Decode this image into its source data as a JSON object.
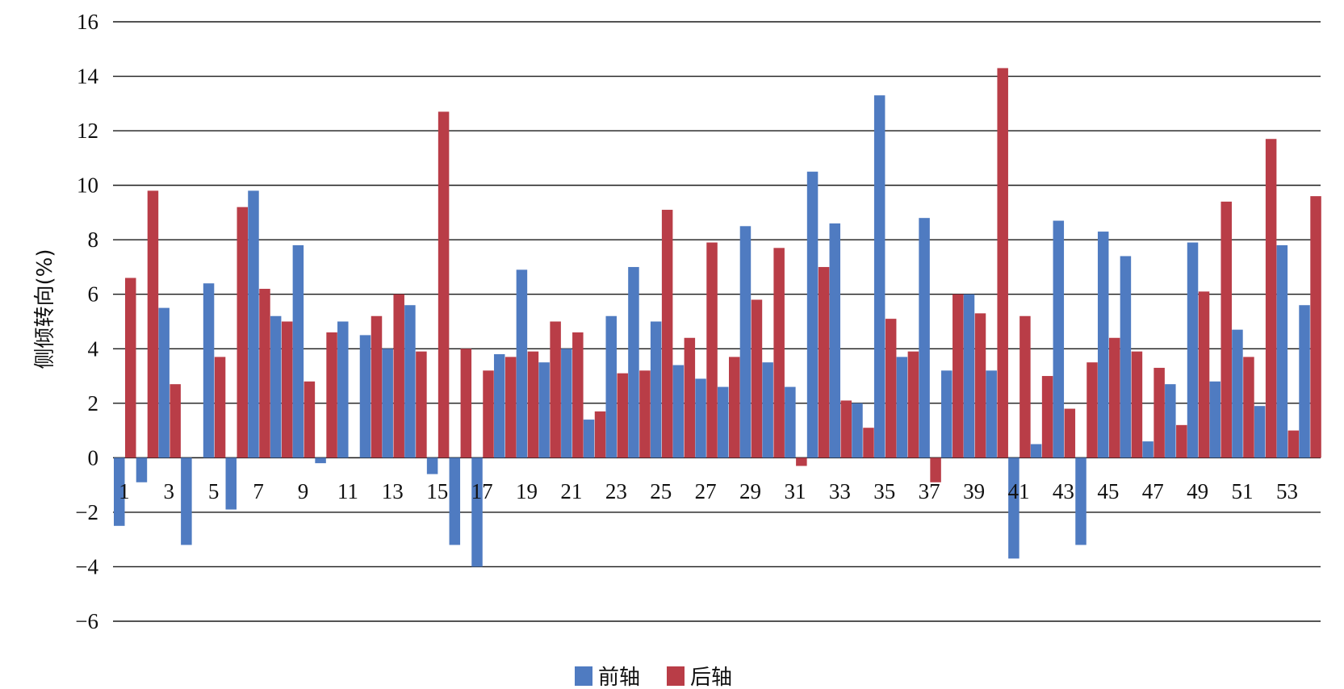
{
  "colors": {
    "front": "#4f7bc1",
    "rear": "#b93d47",
    "grid": "#1a1a1a",
    "text": "#111111"
  },
  "chart_data": {
    "type": "bar",
    "title": "",
    "xlabel": "",
    "ylabel": "侧倾转向(%)",
    "ylim": [
      -6,
      16
    ],
    "yticks": [
      16,
      14,
      12,
      10,
      8,
      6,
      4,
      2,
      0,
      -2,
      -4,
      -6
    ],
    "ytick_labels": [
      "16",
      "14",
      "12",
      "10",
      "8",
      "6",
      "4",
      "2",
      "0",
      "−2",
      "−4",
      "−6"
    ],
    "grid": true,
    "legend_position": "bottom-center",
    "categories": [
      "1",
      "2",
      "3",
      "4",
      "5",
      "6",
      "7",
      "8",
      "9",
      "10",
      "11",
      "12",
      "13",
      "14",
      "15",
      "16",
      "17",
      "18",
      "19",
      "20",
      "21",
      "22",
      "23",
      "24",
      "25",
      "26",
      "27",
      "28",
      "29",
      "30",
      "31",
      "32",
      "33",
      "34",
      "35",
      "36",
      "37",
      "38",
      "39",
      "40",
      "41",
      "42",
      "43",
      "44",
      "45",
      "46",
      "47",
      "48",
      "49",
      "50",
      "51",
      "52",
      "53",
      "54"
    ],
    "x_tick_labels": [
      "1",
      "3",
      "5",
      "7",
      "9",
      "11",
      "13",
      "15",
      "17",
      "19",
      "21",
      "23",
      "25",
      "27",
      "29",
      "31",
      "33",
      "35",
      "37",
      "39",
      "41",
      "43",
      "45",
      "47",
      "49",
      "51",
      "53"
    ],
    "series": [
      {
        "name": "前轴",
        "values": [
          -2.5,
          -0.9,
          5.5,
          -3.2,
          6.4,
          -1.9,
          9.8,
          5.2,
          7.8,
          -0.2,
          5.0,
          4.5,
          4.0,
          5.6,
          -0.6,
          -3.2,
          -4.0,
          3.8,
          6.9,
          3.5,
          4.0,
          1.4,
          5.2,
          7.0,
          5.0,
          3.4,
          2.9,
          2.6,
          8.5,
          3.5,
          2.6,
          10.5,
          8.6,
          2.0,
          13.3,
          3.7,
          8.8,
          3.2,
          6.0,
          3.2,
          -3.7,
          0.5,
          8.7,
          -3.2,
          8.3,
          7.4,
          0.6,
          2.7,
          7.9,
          2.8,
          4.7,
          1.9,
          7.8,
          5.6
        ]
      },
      {
        "name": "后轴",
        "values": [
          6.6,
          9.8,
          2.7,
          0,
          3.7,
          9.2,
          6.2,
          5.0,
          2.8,
          4.6,
          0,
          5.2,
          6.0,
          3.9,
          12.7,
          4.0,
          3.2,
          3.7,
          3.9,
          5.0,
          4.6,
          1.7,
          3.1,
          3.2,
          9.1,
          4.4,
          7.9,
          3.7,
          5.8,
          7.7,
          -0.3,
          7.0,
          2.1,
          1.1,
          5.1,
          3.9,
          -0.9,
          6.0,
          5.3,
          14.3,
          5.2,
          3.0,
          1.8,
          3.5,
          4.4,
          3.9,
          3.3,
          1.2,
          6.1,
          9.4,
          3.7,
          11.7,
          1.0,
          9.6
        ]
      }
    ]
  }
}
